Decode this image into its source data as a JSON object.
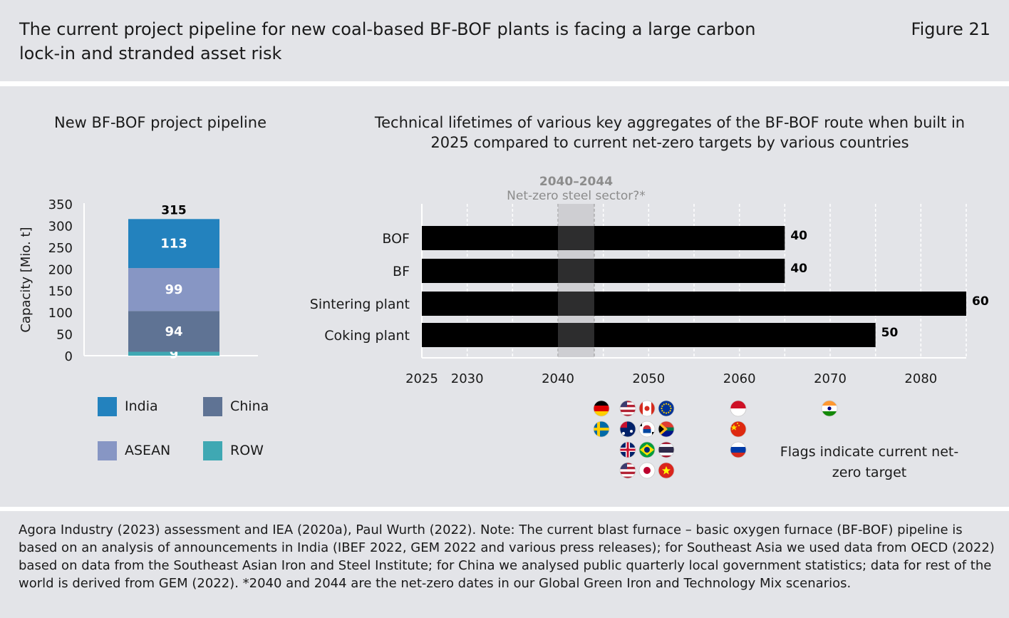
{
  "header": {
    "title": "The current project pipeline for new coal-based BF-BOF plants is facing a large carbon lock-in and stranded asset risk",
    "figure_label": "Figure 21"
  },
  "flags_note": "Flags indicate current net-zero target",
  "footer": {
    "source_note": "Agora Industry (2023) assessment and IEA (2020a), Paul Wurth (2022). Note: The current blast furnace – basic oxygen furnace (BF-BOF) pipeline is based on an analysis of announcements in India (IBEF 2022, GEM 2022 and various press releases); for Southeast Asia we used data from OECD (2022) based on data from the Southeast Asian Iron and Steel Institute; for China we analysed public quarterly local government statistics; data for rest of the world is derived from GEM (2022). *2040 and 2044 are the net-zero dates in our Global Green Iron and Technology Mix scenarios."
  },
  "chart_data": [
    {
      "type": "bar",
      "stacked": true,
      "title": "New BF-BOF project pipeline",
      "ylabel": "Capacity [Mio. t]",
      "ylim": [
        0,
        350
      ],
      "yticks": [
        0,
        50,
        100,
        150,
        200,
        250,
        300,
        350
      ],
      "total_label": "315",
      "series": [
        {
          "name": "ROW",
          "value": 9,
          "label": "9",
          "color": "#3fa8b3"
        },
        {
          "name": "China",
          "value": 94,
          "label": "94",
          "color": "#5f7394"
        },
        {
          "name": "ASEAN",
          "value": 99,
          "label": "99",
          "color": "#8796c4"
        },
        {
          "name": "India",
          "value": 113,
          "label": "113",
          "color": "#2382be"
        }
      ],
      "legend": [
        {
          "name": "India",
          "color": "#2382be"
        },
        {
          "name": "China",
          "color": "#5f7394"
        },
        {
          "name": "ASEAN",
          "color": "#8796c4"
        },
        {
          "name": "ROW",
          "color": "#3fa8b3"
        }
      ]
    },
    {
      "type": "bar",
      "orientation": "horizontal",
      "title": "Technical lifetimes of various key aggregates of the BF-BOF route when built in 2025 compared to current net-zero targets by various countries",
      "start_year": 2025,
      "xlim": [
        2025,
        2085
      ],
      "xticks": [
        2025,
        2030,
        2040,
        2050,
        2060,
        2070,
        2080
      ],
      "grid": true,
      "categories": [
        "BOF",
        "BF",
        "Sintering plant",
        "Coking plant"
      ],
      "values": [
        40,
        40,
        60,
        50
      ],
      "labels": [
        "40",
        "40",
        "60",
        "50"
      ],
      "bar_color": "#000000",
      "highlight": {
        "range": [
          2040,
          2044
        ],
        "label": "2040–2044",
        "sublabel": "Net-zero steel sector?*",
        "color": "#cfcfd2"
      },
      "flag_groups": [
        {
          "year": 2045,
          "columns": [
            [
              "germany",
              "sweden"
            ],
            [
              "usa",
              "australia",
              "uk",
              "usa"
            ],
            [
              "canada",
              "south-korea",
              "brazil",
              "japan"
            ],
            [
              "eu",
              "south-africa",
              "thailand",
              "vietnam"
            ]
          ]
        },
        {
          "year": 2060,
          "columns": [
            [
              "indonesia",
              "china",
              "russia"
            ]
          ]
        },
        {
          "year": 2070,
          "columns": [
            [
              "india"
            ]
          ]
        }
      ]
    }
  ]
}
